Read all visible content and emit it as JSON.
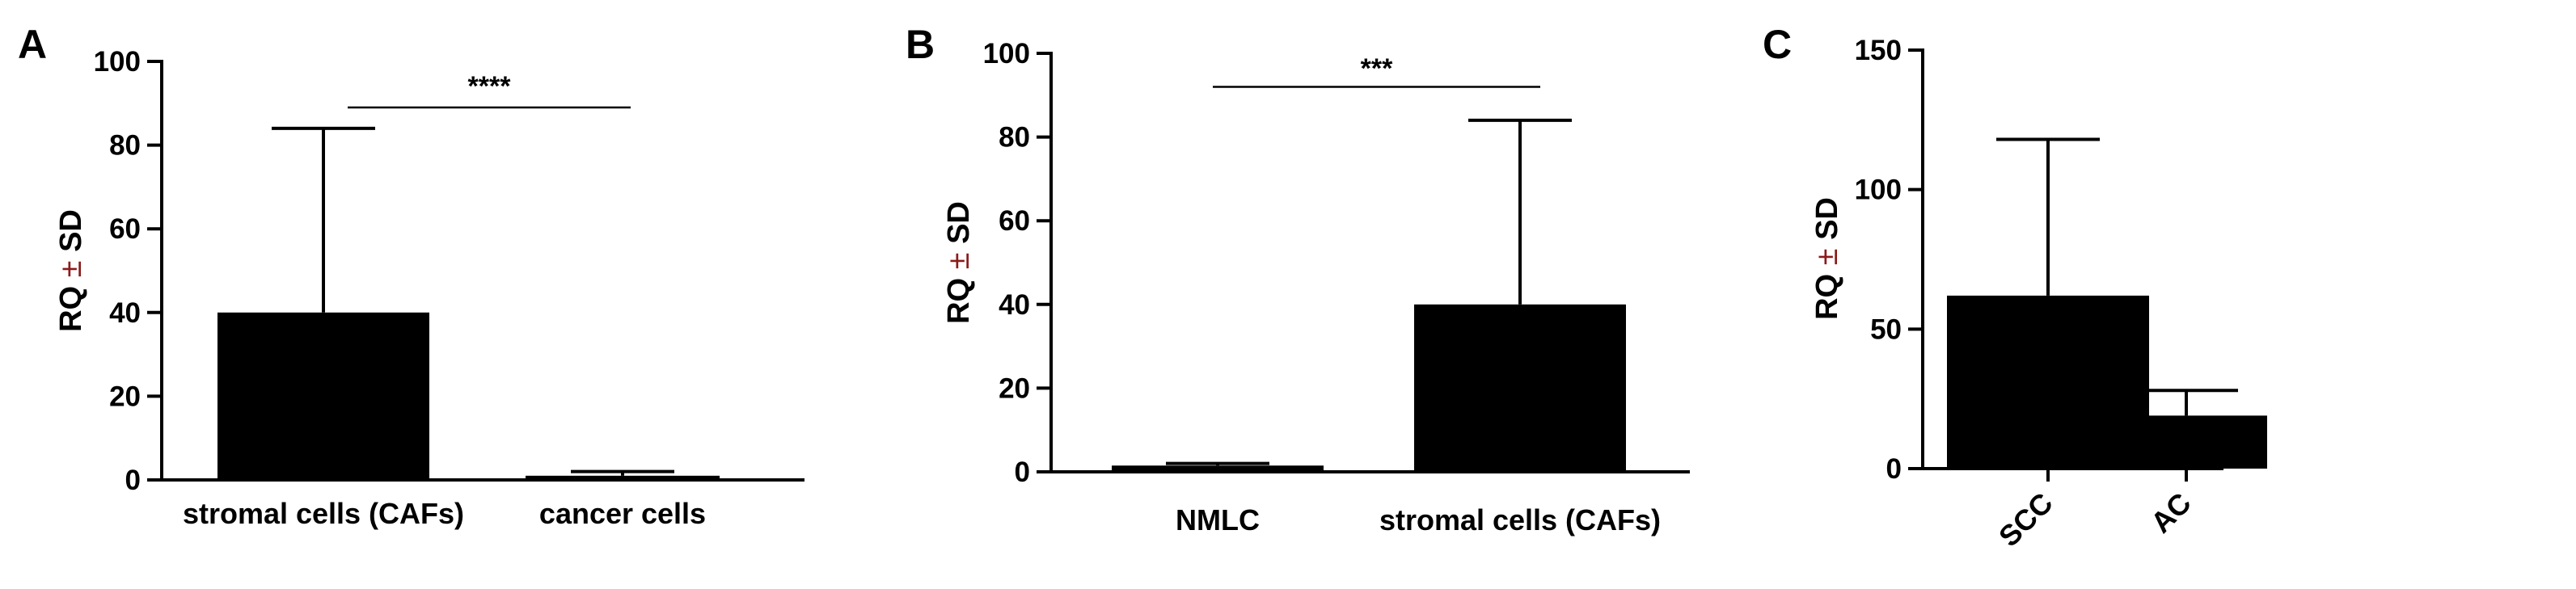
{
  "chart_data": [
    {
      "panel": "A",
      "type": "bar",
      "ylabel_parts": [
        "RQ ",
        "±",
        " SD"
      ],
      "ylim": [
        0,
        100
      ],
      "yticks": [
        "0",
        "20",
        "40",
        "60",
        "80",
        "100"
      ],
      "categories": [
        "stromal cells (CAFs)",
        "cancer cells"
      ],
      "values": [
        40,
        1
      ],
      "errors": [
        44,
        1
      ],
      "significance": {
        "between": [
          0,
          1
        ],
        "label": "****",
        "y": 89
      }
    },
    {
      "panel": "B",
      "type": "bar",
      "ylabel_parts": [
        "RQ ",
        "±",
        " SD"
      ],
      "ylim": [
        0,
        100
      ],
      "yticks": [
        "0",
        "20",
        "40",
        "60",
        "80",
        "100"
      ],
      "categories": [
        "NMLC",
        "stromal cells (CAFs)"
      ],
      "values": [
        1.5,
        40
      ],
      "errors": [
        0.5,
        44
      ],
      "significance": {
        "between": [
          0,
          1
        ],
        "label": "***",
        "y": 92
      }
    },
    {
      "panel": "C",
      "type": "bar",
      "ylabel_parts": [
        "RQ ",
        "±",
        " SD"
      ],
      "ylim": [
        0,
        150
      ],
      "yticks": [
        "0",
        "50",
        "100",
        "150"
      ],
      "categories": [
        "SCC",
        "AC"
      ],
      "values": [
        62,
        19
      ],
      "errors": [
        56,
        9
      ],
      "rotated_labels": true
    }
  ],
  "colors": {
    "bars": "#000000",
    "pm_sign": "#8B1A1A"
  }
}
